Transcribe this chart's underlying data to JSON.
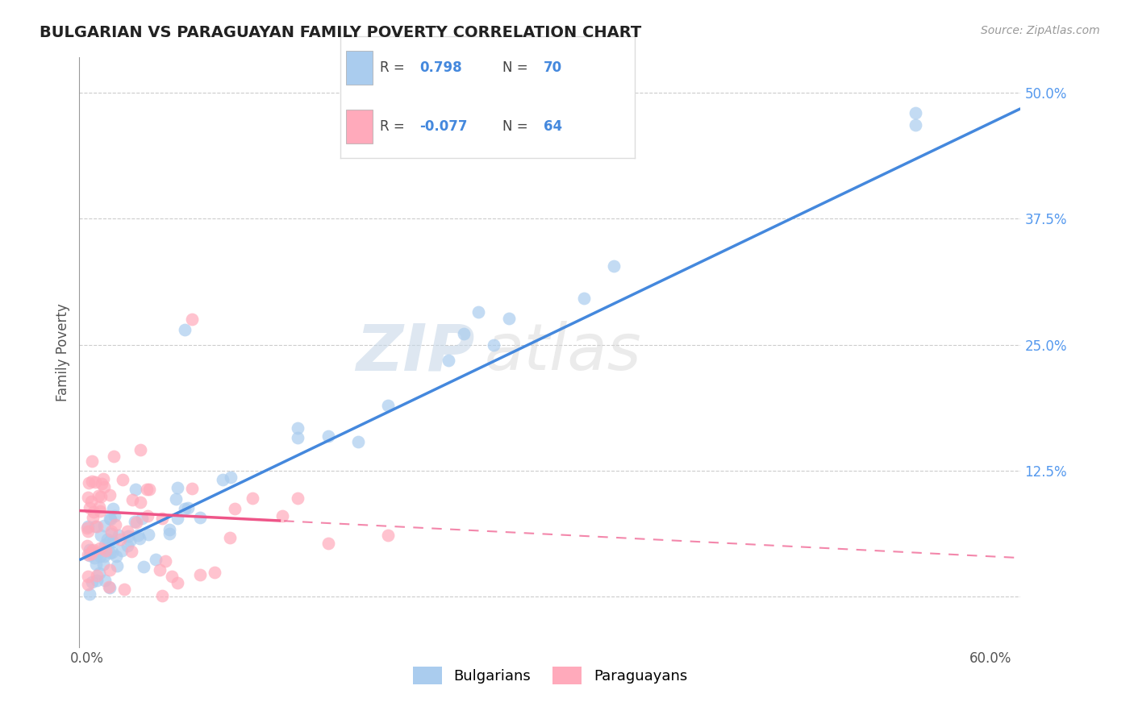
{
  "title": "BULGARIAN VS PARAGUAYAN FAMILY POVERTY CORRELATION CHART",
  "source": "Source: ZipAtlas.com",
  "ylabel": "Family Poverty",
  "x_ticks": [
    0.0,
    0.1,
    0.2,
    0.3,
    0.4,
    0.5,
    0.6
  ],
  "x_tick_labels": [
    "0.0%",
    "",
    "",
    "",
    "",
    "",
    "60.0%"
  ],
  "y_ticks": [
    0.0,
    0.125,
    0.25,
    0.375,
    0.5
  ],
  "y_tick_labels": [
    "",
    "12.5%",
    "25.0%",
    "37.5%",
    "50.0%"
  ],
  "xlim": [
    -0.005,
    0.62
  ],
  "ylim": [
    -0.05,
    0.535
  ],
  "bg_color": "#ffffff",
  "grid_color": "#cccccc",
  "blue_color": "#aaccee",
  "pink_color": "#ffaabb",
  "blue_line_color": "#4488dd",
  "pink_line_color": "#ee5588",
  "legend_blue_r": "0.798",
  "legend_blue_n": "70",
  "legend_pink_r": "-0.077",
  "legend_pink_n": "64",
  "legend_label_blue": "Bulgarians",
  "legend_label_pink": "Paraguayans",
  "watermark_zip": "ZIP",
  "watermark_atlas": "atlas",
  "blue_line_start_x": 0.0,
  "blue_line_start_y": 0.04,
  "blue_line_end_x": 0.6,
  "blue_line_end_y": 0.47,
  "pink_line_start_x": 0.0,
  "pink_line_start_y": 0.085,
  "pink_line_end_x": 0.6,
  "pink_line_end_y": 0.04
}
